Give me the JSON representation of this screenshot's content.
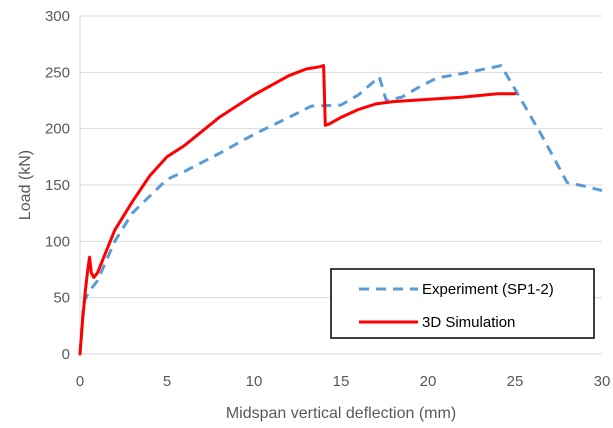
{
  "chart_data": {
    "type": "line",
    "xlabel": "Midspan vertical deflection (mm)",
    "ylabel": "Load (kN)",
    "xlim": [
      0,
      30
    ],
    "ylim": [
      0,
      300
    ],
    "x_ticks": [
      0,
      5,
      10,
      15,
      20,
      25,
      30
    ],
    "y_ticks": [
      0,
      50,
      100,
      150,
      200,
      250,
      300
    ],
    "grid": "horizontal",
    "legend_position": "bottom-right",
    "series": [
      {
        "name": "Experiment (SP1-2)",
        "color": "#5B9BD5",
        "style": "dashed",
        "points": [
          [
            0,
            0
          ],
          [
            0.2,
            45
          ],
          [
            0.5,
            55
          ],
          [
            1,
            65
          ],
          [
            2,
            100
          ],
          [
            3,
            125
          ],
          [
            4,
            140
          ],
          [
            5,
            155
          ],
          [
            6,
            162
          ],
          [
            8,
            178
          ],
          [
            10,
            195
          ],
          [
            12,
            210
          ],
          [
            13.3,
            220
          ],
          [
            15,
            221
          ],
          [
            16,
            230
          ],
          [
            17.2,
            246
          ],
          [
            17.6,
            225
          ],
          [
            18.5,
            228
          ],
          [
            19.5,
            237
          ],
          [
            20.5,
            245
          ],
          [
            22,
            249
          ],
          [
            24.2,
            256
          ],
          [
            25,
            235
          ],
          [
            26.5,
            195
          ],
          [
            28,
            152
          ],
          [
            29,
            149
          ],
          [
            30,
            145
          ]
        ]
      },
      {
        "name": "3D Simulation",
        "color": "#FF0000",
        "style": "solid",
        "points": [
          [
            0,
            0
          ],
          [
            0.15,
            30
          ],
          [
            0.3,
            55
          ],
          [
            0.45,
            75
          ],
          [
            0.55,
            86
          ],
          [
            0.65,
            72
          ],
          [
            0.8,
            68
          ],
          [
            1,
            72
          ],
          [
            2,
            110
          ],
          [
            3,
            135
          ],
          [
            4,
            158
          ],
          [
            5,
            175
          ],
          [
            6,
            185
          ],
          [
            8,
            210
          ],
          [
            10,
            230
          ],
          [
            12,
            247
          ],
          [
            13,
            253
          ],
          [
            13.8,
            255
          ],
          [
            14,
            256
          ],
          [
            14.1,
            203
          ],
          [
            14.3,
            204
          ],
          [
            15,
            210
          ],
          [
            16,
            217
          ],
          [
            17,
            222
          ],
          [
            18,
            224
          ],
          [
            20,
            226
          ],
          [
            22,
            228
          ],
          [
            24,
            231
          ],
          [
            25,
            231
          ]
        ]
      }
    ]
  }
}
